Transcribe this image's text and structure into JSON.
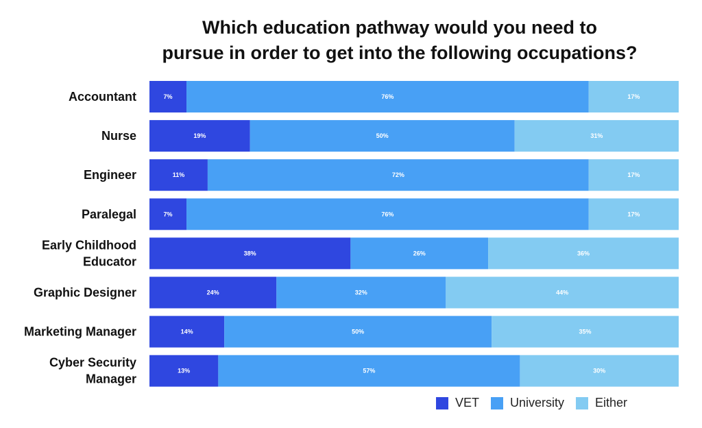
{
  "chart_data": {
    "type": "bar",
    "orientation": "horizontal",
    "stacked": true,
    "title_lines": [
      "Which education pathway would you need to",
      "pursue in order to get into the following occupations?"
    ],
    "categories": [
      [
        "Accountant"
      ],
      [
        "Nurse"
      ],
      [
        "Engineer"
      ],
      [
        "Paralegal"
      ],
      [
        "Early Childhood",
        "Educator"
      ],
      [
        "Graphic Designer"
      ],
      [
        "Marketing Manager"
      ],
      [
        "Cyber Security",
        "Manager"
      ]
    ],
    "series": [
      {
        "name": "VET",
        "color": "#2f47e0",
        "values": [
          7,
          19,
          11,
          7,
          38,
          24,
          14,
          13
        ]
      },
      {
        "name": "University",
        "color": "#48a0f5",
        "values": [
          76,
          50,
          72,
          76,
          26,
          32,
          50,
          57
        ]
      },
      {
        "name": "Either",
        "color": "#83cbf2",
        "values": [
          17,
          31,
          17,
          17,
          36,
          44,
          35,
          30
        ]
      }
    ],
    "value_suffix": "%",
    "legend_position": "bottom-right",
    "grid": false
  }
}
